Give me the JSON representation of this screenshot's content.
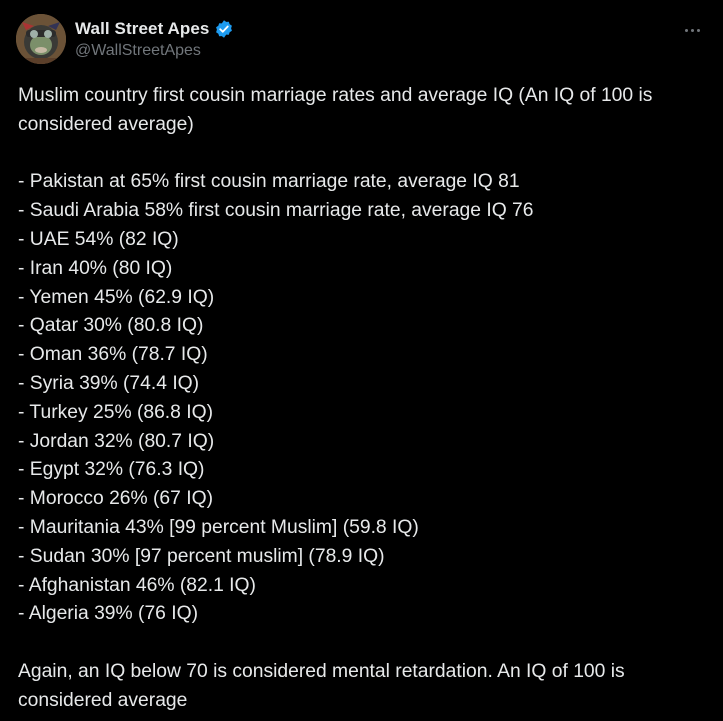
{
  "author": {
    "display_name": "Wall Street Apes",
    "handle": "@WallStreetApes",
    "verified": true,
    "verified_color": "#1d9bf0",
    "avatar_icon": "ape-avatar-icon"
  },
  "menu": {
    "more_icon": "more-horizontal-icon"
  },
  "tweet": {
    "intro": "Muslim country first cousin marriage rates and average IQ (An IQ of 100 is considered average)",
    "items": [
      "- Pakistan at 65% first cousin marriage rate, average IQ 81",
      "- Saudi Arabia 58% first cousin marriage rate, average IQ 76",
      "- UAE 54%  (82 IQ)",
      "- Iran 40% (80 IQ)",
      "- Yemen 45% (62.9 IQ)",
      "- Qatar 30% (80.8 IQ)",
      "- Oman 36% (78.7 IQ)",
      "- Syria 39% (74.4 IQ)",
      "- Turkey 25% (86.8 IQ)",
      "- Jordan 32% (80.7 IQ)",
      "- Egypt 32% (76.3 IQ)",
      "- Morocco 26% (67 IQ)",
      "- Mauritania 43% [99 percent Muslim] (59.8 IQ)",
      "- Sudan 30% [97 percent muslim] (78.9 IQ)",
      "- Afghanistan 46% (82.1 IQ)",
      "- Algeria 39% (76 IQ)"
    ],
    "closing": "Again, an IQ below 70 is considered mental retardation. An IQ of 100 is considered average"
  },
  "colors": {
    "background": "#000000",
    "text": "#e7e9ea",
    "secondary": "#71767b"
  }
}
